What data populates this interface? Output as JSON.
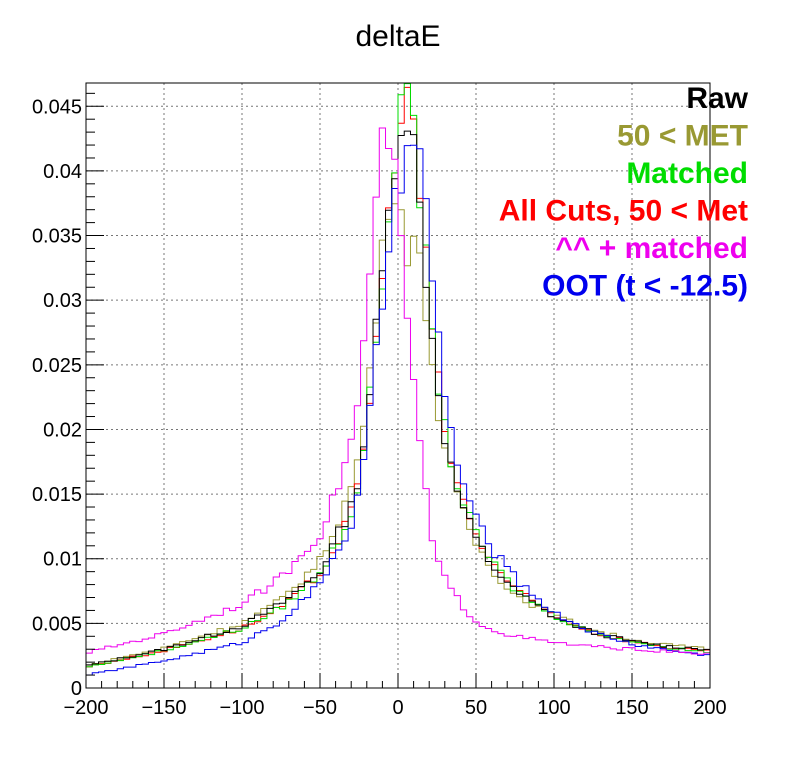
{
  "chart_data": {
    "type": "line",
    "title": "deltaE",
    "xlabel": "",
    "ylabel": "",
    "xlim": [
      -200,
      200
    ],
    "ylim": [
      0,
      0.0468
    ],
    "grid": true,
    "legend_position": "top-right",
    "x_ticks": [
      -200,
      -150,
      -100,
      -50,
      0,
      50,
      100,
      150,
      200
    ],
    "x_tick_labels": [
      "−200",
      "−150",
      "−100",
      "−50",
      "0",
      "50",
      "100",
      "150",
      "200"
    ],
    "y_ticks": [
      0,
      0.005,
      0.01,
      0.015,
      0.02,
      0.025,
      0.03,
      0.035,
      0.04,
      0.045
    ],
    "y_tick_labels": [
      "0",
      "0.005",
      "0.01",
      "0.015",
      "0.02",
      "0.025",
      "0.03",
      "0.035",
      "0.04",
      "0.045"
    ],
    "x": [
      -200,
      -150,
      -100,
      -75,
      -50,
      -40,
      -30,
      -25,
      -20,
      -15,
      -10,
      -8,
      -5,
      -3,
      0,
      3,
      5,
      8,
      10,
      12,
      15,
      18,
      20,
      25,
      30,
      35,
      40,
      50,
      60,
      75,
      100,
      125,
      150,
      175,
      200
    ],
    "series": [
      {
        "name": "Raw",
        "color": "#000000",
        "values": [
          0.0017,
          0.003,
          0.0048,
          0.0065,
          0.009,
          0.0115,
          0.014,
          0.0165,
          0.0205,
          0.0265,
          0.032,
          0.0345,
          0.0375,
          0.04,
          0.043,
          0.044,
          0.0448,
          0.044,
          0.042,
          0.0395,
          0.036,
          0.032,
          0.029,
          0.024,
          0.0195,
          0.0165,
          0.0145,
          0.0115,
          0.0095,
          0.0075,
          0.0055,
          0.0043,
          0.0036,
          0.0032,
          0.003
        ]
      },
      {
        "name": "50 < MET",
        "color": "#999933",
        "values": [
          0.0017,
          0.0031,
          0.005,
          0.0068,
          0.0098,
          0.0125,
          0.0155,
          0.018,
          0.022,
          0.028,
          0.0335,
          0.036,
          0.0385,
          0.0395,
          0.038,
          0.036,
          0.034,
          0.034,
          0.0345,
          0.034,
          0.032,
          0.0295,
          0.027,
          0.022,
          0.0185,
          0.016,
          0.014,
          0.0112,
          0.0092,
          0.0072,
          0.0056,
          0.0045,
          0.0037,
          0.0033,
          0.003
        ]
      },
      {
        "name": "Matched",
        "color": "#00dd00",
        "values": [
          0.0016,
          0.0029,
          0.0046,
          0.0062,
          0.0088,
          0.011,
          0.0135,
          0.016,
          0.02,
          0.026,
          0.0315,
          0.034,
          0.0375,
          0.0405,
          0.0435,
          0.0445,
          0.0452,
          0.0452,
          0.044,
          0.041,
          0.037,
          0.033,
          0.03,
          0.0245,
          0.02,
          0.017,
          0.015,
          0.0118,
          0.0098,
          0.0076,
          0.0056,
          0.0043,
          0.0036,
          0.0031,
          0.0028
        ]
      },
      {
        "name": "All Cuts, 50 < Met",
        "color": "#ff0000",
        "values": [
          0.0016,
          0.0029,
          0.0046,
          0.0062,
          0.0088,
          0.011,
          0.0135,
          0.016,
          0.02,
          0.026,
          0.0315,
          0.034,
          0.0375,
          0.0405,
          0.0435,
          0.0445,
          0.0452,
          0.0452,
          0.044,
          0.041,
          0.037,
          0.033,
          0.03,
          0.0245,
          0.02,
          0.017,
          0.015,
          0.0118,
          0.0098,
          0.0076,
          0.0056,
          0.0043,
          0.0036,
          0.0031,
          0.0028
        ]
      },
      {
        "name": "^^ + matched",
        "color": "#ee00ee",
        "values": [
          0.0027,
          0.0042,
          0.0065,
          0.0085,
          0.012,
          0.015,
          0.019,
          0.023,
          0.029,
          0.036,
          0.042,
          0.0432,
          0.0428,
          0.0405,
          0.037,
          0.033,
          0.029,
          0.026,
          0.024,
          0.021,
          0.018,
          0.015,
          0.0125,
          0.0098,
          0.0085,
          0.0075,
          0.0065,
          0.0052,
          0.0045,
          0.004,
          0.0035,
          0.0032,
          0.003,
          0.0028,
          0.0026
        ]
      },
      {
        "name": "OOT (t < -12.5)",
        "color": "#0000ee",
        "values": [
          0.001,
          0.0021,
          0.0035,
          0.0052,
          0.008,
          0.0105,
          0.0125,
          0.015,
          0.019,
          0.0245,
          0.03,
          0.032,
          0.0345,
          0.0365,
          0.0385,
          0.04,
          0.041,
          0.042,
          0.0425,
          0.042,
          0.04,
          0.037,
          0.034,
          0.028,
          0.023,
          0.019,
          0.0165,
          0.013,
          0.0108,
          0.0085,
          0.0058,
          0.0043,
          0.0034,
          0.0029,
          0.0025
        ]
      }
    ]
  }
}
